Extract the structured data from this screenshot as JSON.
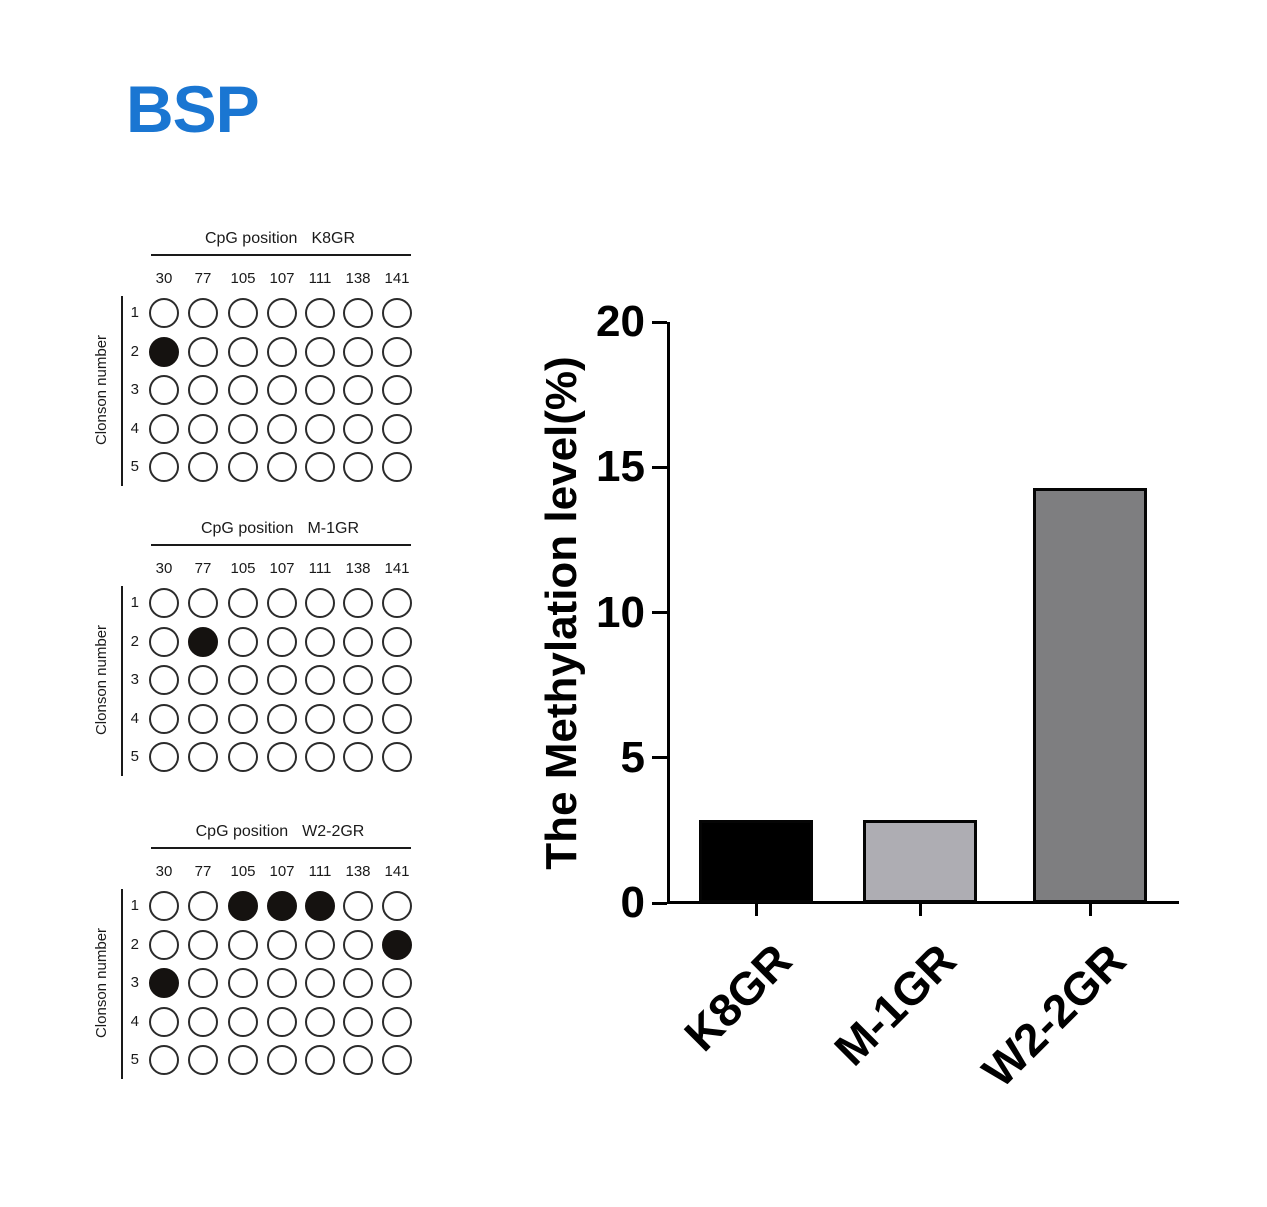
{
  "page": {
    "title": "BSP",
    "title_color": "#1a76d2"
  },
  "diagrams": [
    {
      "title_prefix": "CpG position",
      "name": "K8GR",
      "side_label": "Clonson number",
      "positions": [
        "30",
        "77",
        "105",
        "107",
        "111",
        "138",
        "141"
      ],
      "clones": [
        "1",
        "2",
        "3",
        "4",
        "5"
      ],
      "filled": [
        [
          1,
          0
        ]
      ]
    },
    {
      "title_prefix": "CpG position",
      "name": "M-1GR",
      "side_label": "Clonson number",
      "positions": [
        "30",
        "77",
        "105",
        "107",
        "111",
        "138",
        "141"
      ],
      "clones": [
        "1",
        "2",
        "3",
        "4",
        "5"
      ],
      "filled": [
        [
          1,
          1
        ]
      ]
    },
    {
      "title_prefix": "CpG position",
      "name": "W2-2GR",
      "side_label": "Clonson number",
      "positions": [
        "30",
        "77",
        "105",
        "107",
        "111",
        "138",
        "141"
      ],
      "clones": [
        "1",
        "2",
        "3",
        "4",
        "5"
      ],
      "filled": [
        [
          0,
          2
        ],
        [
          0,
          3
        ],
        [
          0,
          4
        ],
        [
          1,
          6
        ],
        [
          2,
          0
        ]
      ]
    }
  ],
  "chart_data": {
    "type": "bar",
    "categories": [
      "K8GR",
      "M-1GR",
      "W2-2GR"
    ],
    "values": [
      2.86,
      2.86,
      14.29
    ],
    "title": "",
    "xlabel": "",
    "ylabel": "The Methylation level(%)",
    "ylim": [
      0,
      20
    ],
    "yticks": [
      "0",
      "5",
      "10",
      "15",
      "20"
    ],
    "grid": "off",
    "legend": "none",
    "bar_colors": [
      "#000000",
      "#aeadb3",
      "#7e7e80"
    ],
    "bar_border_color": "#050505",
    "axis_color": "#000000"
  }
}
